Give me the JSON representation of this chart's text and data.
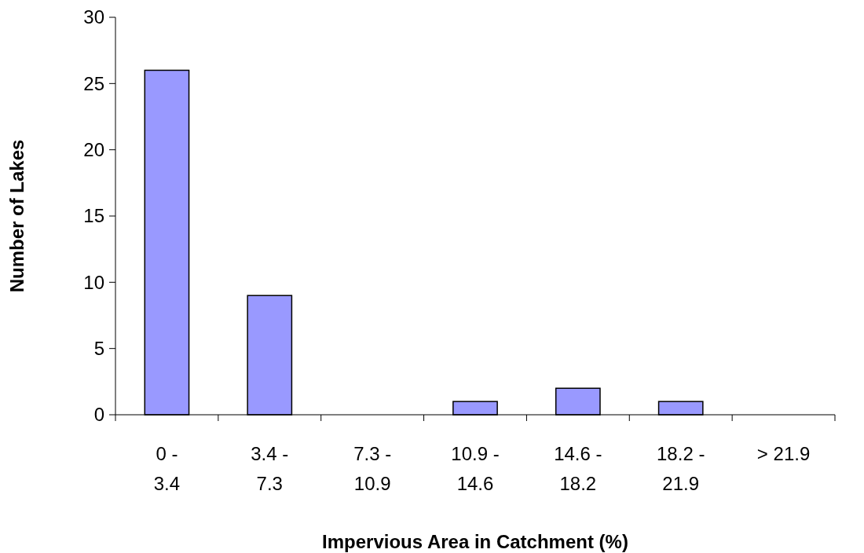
{
  "chart_data": {
    "type": "bar",
    "xlabel": "Impervious Area in Catchment (%)",
    "ylabel": "Number of Lakes",
    "categories": [
      "0 - 3.4",
      "3.4 - 7.3",
      "7.3 - 10.9",
      "10.9 - 14.6",
      "14.6 - 18.2",
      "18.2 - 21.9",
      "> 21.9"
    ],
    "values": [
      26,
      9,
      0,
      1,
      2,
      1,
      0
    ],
    "color": "#9999ff",
    "ylim": [
      0,
      30
    ],
    "yticks": [
      0,
      5,
      10,
      15,
      20,
      25,
      30
    ],
    "grid": false
  }
}
